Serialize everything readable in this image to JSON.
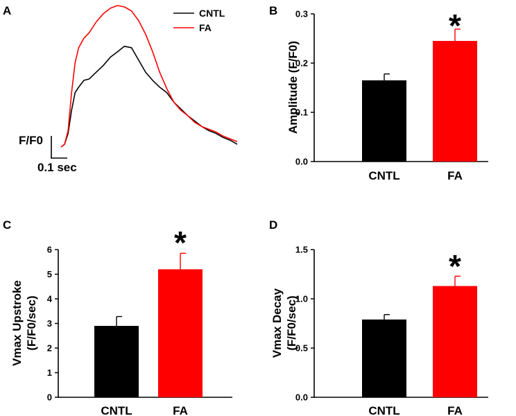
{
  "colors": {
    "cntl": "#000000",
    "fa": "#ff0000"
  },
  "chart_data": [
    {
      "panel": "A",
      "type": "line",
      "legend": [
        "CNTL",
        "FA"
      ],
      "scale_bar": {
        "y_label": "F/F0",
        "x_label": "0.1 sec"
      },
      "series": [
        {
          "name": "CNTL",
          "t": [
            0.0,
            0.02,
            0.04,
            0.06,
            0.08,
            0.1,
            0.13,
            0.16,
            0.2,
            0.24,
            0.28,
            0.32,
            0.36,
            0.4,
            0.44,
            0.48,
            0.52,
            0.56,
            0.6,
            0.64,
            0.68,
            0.72,
            0.76,
            0.8,
            0.84,
            0.88,
            0.92,
            0.96,
            1.0
          ],
          "v": [
            0.0,
            0.02,
            0.1,
            0.27,
            0.4,
            0.44,
            0.49,
            0.5,
            0.55,
            0.6,
            0.66,
            0.7,
            0.74,
            0.73,
            0.64,
            0.55,
            0.49,
            0.44,
            0.4,
            0.33,
            0.28,
            0.23,
            0.19,
            0.15,
            0.12,
            0.1,
            0.07,
            0.05,
            0.02
          ]
        },
        {
          "name": "FA",
          "t": [
            0.0,
            0.02,
            0.04,
            0.06,
            0.08,
            0.1,
            0.13,
            0.16,
            0.2,
            0.24,
            0.28,
            0.32,
            0.36,
            0.4,
            0.44,
            0.48,
            0.52,
            0.56,
            0.6,
            0.64,
            0.68,
            0.72,
            0.76,
            0.8,
            0.84,
            0.88,
            0.92,
            0.96,
            1.0
          ],
          "v": [
            0.0,
            0.02,
            0.12,
            0.4,
            0.62,
            0.73,
            0.8,
            0.84,
            0.92,
            0.98,
            1.02,
            1.04,
            1.03,
            1.0,
            0.93,
            0.83,
            0.7,
            0.55,
            0.43,
            0.33,
            0.27,
            0.23,
            0.18,
            0.15,
            0.13,
            0.11,
            0.08,
            0.06,
            0.04
          ]
        }
      ]
    },
    {
      "panel": "B",
      "type": "bar",
      "categories": [
        "CNTL",
        "FA"
      ],
      "values": [
        0.165,
        0.245
      ],
      "errors": [
        0.013,
        0.024
      ],
      "ylabel": "Amplitude (F/F0)",
      "ylim": [
        0,
        0.3
      ],
      "yticks": [
        "0.0",
        "0.1",
        "0.2",
        "0.3"
      ],
      "significance": [
        "",
        "*"
      ]
    },
    {
      "panel": "C",
      "type": "bar",
      "categories": [
        "CNTL",
        "FA"
      ],
      "values": [
        2.9,
        5.2
      ],
      "errors": [
        0.38,
        0.65
      ],
      "ylabel_lines": [
        "Vmax Upstroke",
        "(F/F0/sec)"
      ],
      "ylim": [
        0,
        6
      ],
      "yticks": [
        "0",
        "1",
        "2",
        "3",
        "4",
        "5",
        "6"
      ],
      "significance": [
        "",
        "*"
      ]
    },
    {
      "panel": "D",
      "type": "bar",
      "categories": [
        "CNTL",
        "FA"
      ],
      "values": [
        0.79,
        1.13
      ],
      "errors": [
        0.05,
        0.1
      ],
      "ylabel_lines": [
        "Vmax Decay",
        "(F/F0/sec)"
      ],
      "ylim": [
        0,
        1.5
      ],
      "yticks": [
        "0.0",
        "0.5",
        "1.0",
        "1.5"
      ],
      "significance": [
        "",
        "*"
      ]
    }
  ]
}
